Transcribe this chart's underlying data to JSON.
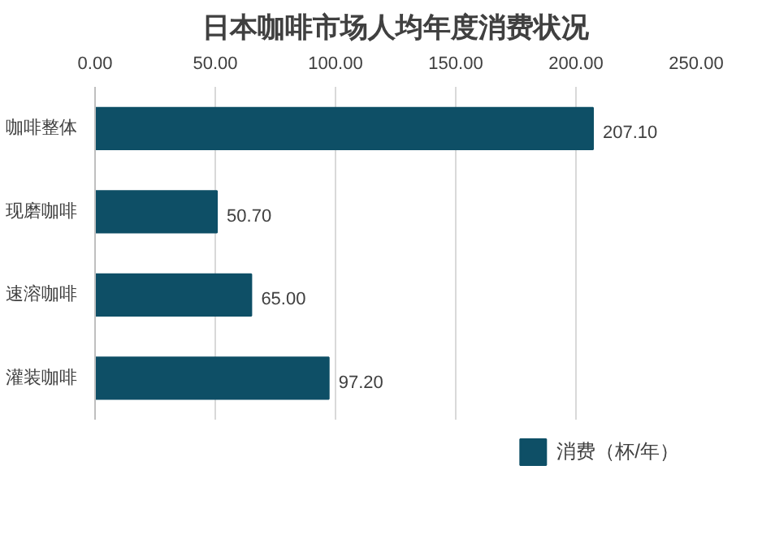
{
  "chart_data": {
    "type": "bar",
    "orientation": "horizontal",
    "title": "日本咖啡市场人均年度消费状况",
    "categories": [
      "咖啡整体",
      "现磨咖啡",
      "速溶咖啡",
      "灌装咖啡"
    ],
    "series": [
      {
        "name": "消费（杯/年）",
        "color": "#0e4f66",
        "values": [
          207.1,
          50.7,
          65.0,
          97.2
        ],
        "value_labels": [
          "207.10",
          "50.70",
          "65.00",
          "97.20"
        ]
      }
    ],
    "xlim": [
      0,
      250
    ],
    "xticks": [
      {
        "value": 0,
        "label": "0.00"
      },
      {
        "value": 50,
        "label": "50.00"
      },
      {
        "value": 100,
        "label": "100.00"
      },
      {
        "value": 150,
        "label": "150.00"
      },
      {
        "value": 200,
        "label": "200.00"
      },
      {
        "value": 250,
        "label": "250.00"
      }
    ],
    "grid": "x",
    "legend": "bottom"
  }
}
